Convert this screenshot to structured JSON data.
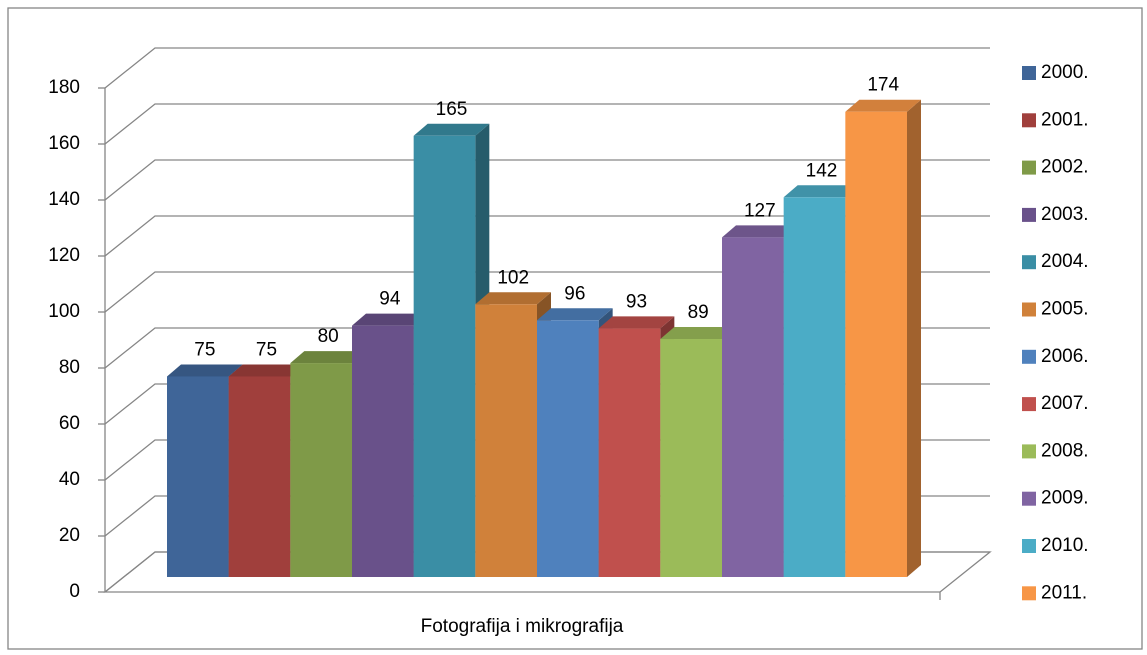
{
  "chart_data": {
    "type": "bar3d",
    "categories": [
      "Fotografija i mikrografija"
    ],
    "ylim": [
      0,
      180
    ],
    "yticks": [
      0,
      20,
      40,
      60,
      80,
      100,
      120,
      140,
      160,
      180
    ],
    "grid": true,
    "legend": "right",
    "series": [
      {
        "name": "2000.",
        "color": "#3f6598",
        "values": [
          75
        ]
      },
      {
        "name": "2001.",
        "color": "#a03f3c",
        "values": [
          75
        ]
      },
      {
        "name": "2002.",
        "color": "#7f9a48",
        "values": [
          80
        ]
      },
      {
        "name": "2003.",
        "color": "#69518a",
        "values": [
          94
        ]
      },
      {
        "name": "2004.",
        "color": "#3a8ea5",
        "values": [
          165
        ]
      },
      {
        "name": "2005.",
        "color": "#d0813a",
        "values": [
          102
        ]
      },
      {
        "name": "2006.",
        "color": "#4f81bd",
        "values": [
          96
        ]
      },
      {
        "name": "2007.",
        "color": "#c0504d",
        "values": [
          93
        ]
      },
      {
        "name": "2008.",
        "color": "#9bbb59",
        "values": [
          89
        ]
      },
      {
        "name": "2009.",
        "color": "#8064a2",
        "values": [
          127
        ]
      },
      {
        "name": "2010.",
        "color": "#4bacc6",
        "values": [
          142
        ]
      },
      {
        "name": "2011.",
        "color": "#f79646",
        "values": [
          174
        ]
      }
    ]
  }
}
